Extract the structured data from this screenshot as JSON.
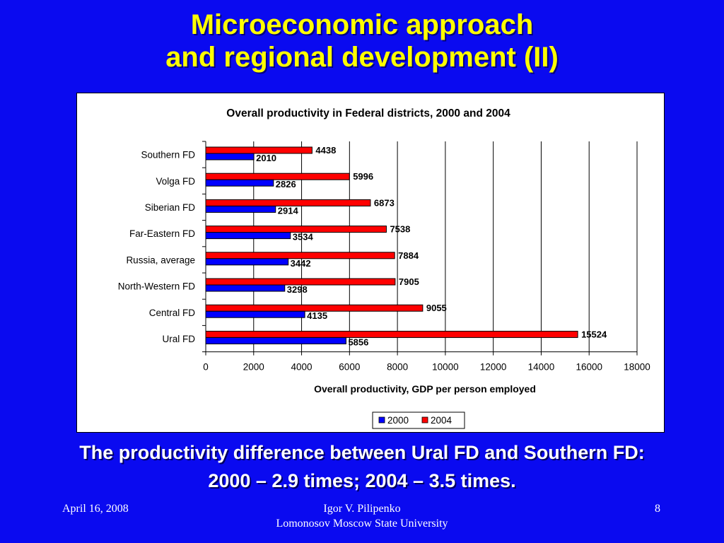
{
  "slide": {
    "title_line1": "Microeconomic approach",
    "title_line2": "and regional development (II)",
    "caption_line1": "The productivity difference between Ural FD and Southern FD:",
    "caption_line2": "2000 – 2.9 times; 2004 – 3.5 times.",
    "footer_date": "April 16, 2008",
    "footer_author": "Igor V. Pilipenko",
    "footer_institution": "Lomonosov Moscow State University",
    "footer_page": "8"
  },
  "colors": {
    "background": "#0a0af0",
    "title": "#ffff00",
    "series_2000": "#0000ff",
    "series_2004": "#ff0000"
  },
  "chart_data": {
    "type": "bar",
    "orientation": "horizontal",
    "title": "Overall productivity in Federal districts, 2000 and 2004",
    "xlabel": "Overall productivity, GDP per person employed",
    "ylabel": "",
    "xlim": [
      0,
      18000
    ],
    "xticks": [
      0,
      2000,
      4000,
      6000,
      8000,
      10000,
      12000,
      14000,
      16000,
      18000
    ],
    "grid": true,
    "legend_position": "bottom",
    "categories": [
      "Southern FD",
      "Volga FD",
      "Siberian FD",
      "Far-Eastern FD",
      "Russia, average",
      "North-Western FD",
      "Central FD",
      "Ural FD"
    ],
    "series": [
      {
        "name": "2000",
        "color": "#0000ff",
        "values": [
          2010,
          2826,
          2914,
          3534,
          3442,
          3298,
          4135,
          5856
        ]
      },
      {
        "name": "2004",
        "color": "#ff0000",
        "values": [
          4438,
          5996,
          6873,
          7538,
          7884,
          7905,
          9055,
          15524
        ]
      }
    ]
  }
}
